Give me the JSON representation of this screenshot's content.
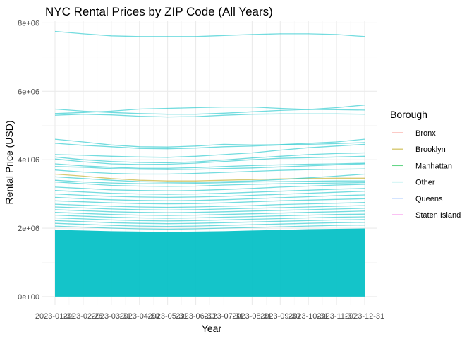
{
  "chart_data": {
    "type": "line",
    "title": "NYC Rental Prices by ZIP Code (All Years)",
    "xlabel": "Year",
    "ylabel": "Rental Price (USD)",
    "x": [
      "2023-01-31",
      "2023-02-28",
      "2023-03-31",
      "2023-04-30",
      "2023-05-31",
      "2023-06-30",
      "2023-07-31",
      "2023-08-31",
      "2023-09-30",
      "2023-10-31",
      "2023-11-30",
      "2023-12-31"
    ],
    "xlim": [
      "2023-01-31",
      "2023-12-31"
    ],
    "ylim": [
      -250000,
      8050000
    ],
    "yticks": [
      0,
      2000000,
      4000000,
      6000000,
      8000000
    ],
    "ytick_labels": [
      "0e+00",
      "2e+06",
      "4e+06",
      "6e+06",
      "8e+06"
    ],
    "grid": true,
    "legend": {
      "title": "Borough",
      "position": "right",
      "entries": [
        {
          "name": "Bronx",
          "color": "#F8766D"
        },
        {
          "name": "Brooklyn",
          "color": "#B79F00"
        },
        {
          "name": "Manhattan",
          "color": "#00BA38"
        },
        {
          "name": "Other",
          "color": "#00BFC4"
        },
        {
          "name": "Queens",
          "color": "#619CFF"
        },
        {
          "name": "Staten Island",
          "color": "#F564E3"
        }
      ]
    },
    "series": [
      {
        "group": "Other",
        "values": [
          7750000,
          7680000,
          7620000,
          7600000,
          7600000,
          7600000,
          7630000,
          7660000,
          7680000,
          7680000,
          7660000,
          7600000
        ]
      },
      {
        "group": "Other",
        "values": [
          5480000,
          5420000,
          5380000,
          5350000,
          5330000,
          5330000,
          5360000,
          5400000,
          5440000,
          5470000,
          5520000,
          5600000
        ]
      },
      {
        "group": "Other",
        "values": [
          5350000,
          5380000,
          5420000,
          5480000,
          5500000,
          5520000,
          5540000,
          5540000,
          5500000,
          5470000,
          5460000,
          5450000
        ]
      },
      {
        "group": "Other",
        "values": [
          5300000,
          5330000,
          5310000,
          5270000,
          5250000,
          5260000,
          5300000,
          5330000,
          5340000,
          5340000,
          5340000,
          5330000
        ]
      },
      {
        "group": "Other",
        "values": [
          4600000,
          4520000,
          4430000,
          4380000,
          4370000,
          4400000,
          4450000,
          4430000,
          4440000,
          4480000,
          4520000,
          4600000
        ]
      },
      {
        "group": "Other",
        "values": [
          4480000,
          4420000,
          4380000,
          4330000,
          4320000,
          4340000,
          4380000,
          4400000,
          4430000,
          4450000,
          4470000,
          4500000
        ]
      },
      {
        "group": "Other",
        "values": [
          4150000,
          4130000,
          4100000,
          4080000,
          4070000,
          4100000,
          4150000,
          4200000,
          4280000,
          4350000,
          4400000,
          4450000
        ]
      },
      {
        "group": "Other",
        "values": [
          4080000,
          4000000,
          3950000,
          3920000,
          3910000,
          3940000,
          3990000,
          4050000,
          4100000,
          4150000,
          4180000,
          4200000
        ]
      },
      {
        "group": "Other",
        "values": [
          4020000,
          3940000,
          3880000,
          3860000,
          3870000,
          3900000,
          3950000,
          4000000,
          4040000,
          4060000,
          4080000,
          4100000
        ]
      },
      {
        "group": "Other",
        "values": [
          3880000,
          3820000,
          3780000,
          3750000,
          3750000,
          3770000,
          3800000,
          3830000,
          3850000,
          3870000,
          3880000,
          3900000
        ]
      },
      {
        "group": "Other",
        "values": [
          3800000,
          3780000,
          3740000,
          3720000,
          3710000,
          3720000,
          3740000,
          3760000,
          3790000,
          3820000,
          3850000,
          3880000
        ]
      },
      {
        "group": "Other",
        "values": [
          3700000,
          3640000,
          3600000,
          3580000,
          3580000,
          3600000,
          3630000,
          3660000,
          3690000,
          3710000,
          3720000,
          3730000
        ]
      },
      {
        "group": "Brooklyn",
        "values": [
          3580000,
          3520000,
          3450000,
          3400000,
          3380000,
          3380000,
          3400000,
          3420000,
          3440000,
          3450000,
          3460000,
          3460000
        ]
      },
      {
        "group": "Other",
        "values": [
          3500000,
          3450000,
          3400000,
          3360000,
          3340000,
          3340000,
          3360000,
          3380000,
          3420000,
          3470000,
          3520000,
          3580000
        ]
      },
      {
        "group": "Other",
        "values": [
          3400000,
          3350000,
          3320000,
          3300000,
          3300000,
          3310000,
          3330000,
          3350000,
          3360000,
          3370000,
          3380000,
          3380000
        ]
      },
      {
        "group": "Other",
        "values": [
          3350000,
          3300000,
          3250000,
          3230000,
          3220000,
          3230000,
          3260000,
          3280000,
          3300000,
          3310000,
          3320000,
          3330000
        ]
      },
      {
        "group": "Other",
        "values": [
          3200000,
          3160000,
          3120000,
          3100000,
          3090000,
          3100000,
          3130000,
          3160000,
          3200000,
          3230000,
          3260000,
          3280000
        ]
      },
      {
        "group": "Other",
        "values": [
          3100000,
          3060000,
          3020000,
          3000000,
          2990000,
          3000000,
          3020000,
          3050000,
          3080000,
          3110000,
          3140000,
          3160000
        ]
      },
      {
        "group": "Other",
        "values": [
          3000000,
          2960000,
          2930000,
          2910000,
          2900000,
          2910000,
          2930000,
          2960000,
          2990000,
          3020000,
          3050000,
          3080000
        ]
      },
      {
        "group": "Other",
        "values": [
          2900000,
          2860000,
          2830000,
          2810000,
          2800000,
          2810000,
          2830000,
          2860000,
          2890000,
          2920000,
          2950000,
          2970000
        ]
      },
      {
        "group": "Other",
        "values": [
          2800000,
          2770000,
          2740000,
          2720000,
          2710000,
          2720000,
          2740000,
          2770000,
          2800000,
          2820000,
          2840000,
          2860000
        ]
      },
      {
        "group": "Other",
        "values": [
          2700000,
          2670000,
          2640000,
          2620000,
          2610000,
          2620000,
          2640000,
          2660000,
          2690000,
          2710000,
          2730000,
          2750000
        ]
      },
      {
        "group": "Other",
        "values": [
          2620000,
          2590000,
          2560000,
          2540000,
          2530000,
          2540000,
          2560000,
          2580000,
          2600000,
          2620000,
          2640000,
          2660000
        ]
      },
      {
        "group": "Other",
        "values": [
          2540000,
          2510000,
          2480000,
          2460000,
          2450000,
          2460000,
          2480000,
          2500000,
          2520000,
          2540000,
          2560000,
          2580000
        ]
      },
      {
        "group": "Other",
        "values": [
          2460000,
          2430000,
          2400000,
          2380000,
          2370000,
          2380000,
          2400000,
          2420000,
          2440000,
          2460000,
          2480000,
          2500000
        ]
      },
      {
        "group": "Other",
        "values": [
          2380000,
          2350000,
          2320000,
          2300000,
          2290000,
          2300000,
          2320000,
          2340000,
          2360000,
          2380000,
          2400000,
          2410000
        ]
      },
      {
        "group": "Other",
        "values": [
          2300000,
          2270000,
          2240000,
          2220000,
          2210000,
          2220000,
          2240000,
          2260000,
          2280000,
          2300000,
          2320000,
          2330000
        ]
      },
      {
        "group": "Other",
        "values": [
          2220000,
          2190000,
          2160000,
          2140000,
          2130000,
          2140000,
          2160000,
          2180000,
          2200000,
          2220000,
          2240000,
          2250000
        ]
      },
      {
        "group": "Other",
        "values": [
          2140000,
          2110000,
          2080000,
          2060000,
          2050000,
          2060000,
          2080000,
          2100000,
          2120000,
          2140000,
          2160000,
          2170000
        ]
      },
      {
        "group": "Other",
        "values": [
          2060000,
          2030000,
          2000000,
          1980000,
          1970000,
          1980000,
          2000000,
          2020000,
          2040000,
          2060000,
          2080000,
          2090000
        ]
      }
    ],
    "filled_band": {
      "group": "Other",
      "lower": 0,
      "upper": [
        1950000,
        1930000,
        1910000,
        1900000,
        1890000,
        1900000,
        1910000,
        1930000,
        1950000,
        1970000,
        1980000,
        1990000
      ]
    }
  }
}
